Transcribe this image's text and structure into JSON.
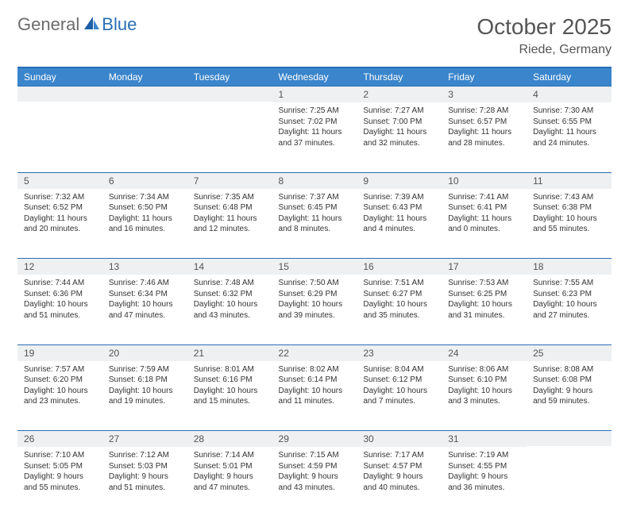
{
  "logo": {
    "text1": "General",
    "text2": "Blue"
  },
  "title": "October 2025",
  "location": "Riede, Germany",
  "colors": {
    "header_bg": "#3a85cc",
    "border": "#2a6fb5",
    "daynum_bg": "#eef0f1",
    "text_muted": "#555",
    "logo_gray": "#6b6b6b",
    "logo_blue": "#2a6fb5"
  },
  "weekdays": [
    "Sunday",
    "Monday",
    "Tuesday",
    "Wednesday",
    "Thursday",
    "Friday",
    "Saturday"
  ],
  "weeks": [
    [
      {
        "n": "",
        "sr": "",
        "ss": "",
        "dl": ""
      },
      {
        "n": "",
        "sr": "",
        "ss": "",
        "dl": ""
      },
      {
        "n": "",
        "sr": "",
        "ss": "",
        "dl": ""
      },
      {
        "n": "1",
        "sr": "Sunrise: 7:25 AM",
        "ss": "Sunset: 7:02 PM",
        "dl": "Daylight: 11 hours and 37 minutes."
      },
      {
        "n": "2",
        "sr": "Sunrise: 7:27 AM",
        "ss": "Sunset: 7:00 PM",
        "dl": "Daylight: 11 hours and 32 minutes."
      },
      {
        "n": "3",
        "sr": "Sunrise: 7:28 AM",
        "ss": "Sunset: 6:57 PM",
        "dl": "Daylight: 11 hours and 28 minutes."
      },
      {
        "n": "4",
        "sr": "Sunrise: 7:30 AM",
        "ss": "Sunset: 6:55 PM",
        "dl": "Daylight: 11 hours and 24 minutes."
      }
    ],
    [
      {
        "n": "5",
        "sr": "Sunrise: 7:32 AM",
        "ss": "Sunset: 6:52 PM",
        "dl": "Daylight: 11 hours and 20 minutes."
      },
      {
        "n": "6",
        "sr": "Sunrise: 7:34 AM",
        "ss": "Sunset: 6:50 PM",
        "dl": "Daylight: 11 hours and 16 minutes."
      },
      {
        "n": "7",
        "sr": "Sunrise: 7:35 AM",
        "ss": "Sunset: 6:48 PM",
        "dl": "Daylight: 11 hours and 12 minutes."
      },
      {
        "n": "8",
        "sr": "Sunrise: 7:37 AM",
        "ss": "Sunset: 6:45 PM",
        "dl": "Daylight: 11 hours and 8 minutes."
      },
      {
        "n": "9",
        "sr": "Sunrise: 7:39 AM",
        "ss": "Sunset: 6:43 PM",
        "dl": "Daylight: 11 hours and 4 minutes."
      },
      {
        "n": "10",
        "sr": "Sunrise: 7:41 AM",
        "ss": "Sunset: 6:41 PM",
        "dl": "Daylight: 11 hours and 0 minutes."
      },
      {
        "n": "11",
        "sr": "Sunrise: 7:43 AM",
        "ss": "Sunset: 6:38 PM",
        "dl": "Daylight: 10 hours and 55 minutes."
      }
    ],
    [
      {
        "n": "12",
        "sr": "Sunrise: 7:44 AM",
        "ss": "Sunset: 6:36 PM",
        "dl": "Daylight: 10 hours and 51 minutes."
      },
      {
        "n": "13",
        "sr": "Sunrise: 7:46 AM",
        "ss": "Sunset: 6:34 PM",
        "dl": "Daylight: 10 hours and 47 minutes."
      },
      {
        "n": "14",
        "sr": "Sunrise: 7:48 AM",
        "ss": "Sunset: 6:32 PM",
        "dl": "Daylight: 10 hours and 43 minutes."
      },
      {
        "n": "15",
        "sr": "Sunrise: 7:50 AM",
        "ss": "Sunset: 6:29 PM",
        "dl": "Daylight: 10 hours and 39 minutes."
      },
      {
        "n": "16",
        "sr": "Sunrise: 7:51 AM",
        "ss": "Sunset: 6:27 PM",
        "dl": "Daylight: 10 hours and 35 minutes."
      },
      {
        "n": "17",
        "sr": "Sunrise: 7:53 AM",
        "ss": "Sunset: 6:25 PM",
        "dl": "Daylight: 10 hours and 31 minutes."
      },
      {
        "n": "18",
        "sr": "Sunrise: 7:55 AM",
        "ss": "Sunset: 6:23 PM",
        "dl": "Daylight: 10 hours and 27 minutes."
      }
    ],
    [
      {
        "n": "19",
        "sr": "Sunrise: 7:57 AM",
        "ss": "Sunset: 6:20 PM",
        "dl": "Daylight: 10 hours and 23 minutes."
      },
      {
        "n": "20",
        "sr": "Sunrise: 7:59 AM",
        "ss": "Sunset: 6:18 PM",
        "dl": "Daylight: 10 hours and 19 minutes."
      },
      {
        "n": "21",
        "sr": "Sunrise: 8:01 AM",
        "ss": "Sunset: 6:16 PM",
        "dl": "Daylight: 10 hours and 15 minutes."
      },
      {
        "n": "22",
        "sr": "Sunrise: 8:02 AM",
        "ss": "Sunset: 6:14 PM",
        "dl": "Daylight: 10 hours and 11 minutes."
      },
      {
        "n": "23",
        "sr": "Sunrise: 8:04 AM",
        "ss": "Sunset: 6:12 PM",
        "dl": "Daylight: 10 hours and 7 minutes."
      },
      {
        "n": "24",
        "sr": "Sunrise: 8:06 AM",
        "ss": "Sunset: 6:10 PM",
        "dl": "Daylight: 10 hours and 3 minutes."
      },
      {
        "n": "25",
        "sr": "Sunrise: 8:08 AM",
        "ss": "Sunset: 6:08 PM",
        "dl": "Daylight: 9 hours and 59 minutes."
      }
    ],
    [
      {
        "n": "26",
        "sr": "Sunrise: 7:10 AM",
        "ss": "Sunset: 5:05 PM",
        "dl": "Daylight: 9 hours and 55 minutes."
      },
      {
        "n": "27",
        "sr": "Sunrise: 7:12 AM",
        "ss": "Sunset: 5:03 PM",
        "dl": "Daylight: 9 hours and 51 minutes."
      },
      {
        "n": "28",
        "sr": "Sunrise: 7:14 AM",
        "ss": "Sunset: 5:01 PM",
        "dl": "Daylight: 9 hours and 47 minutes."
      },
      {
        "n": "29",
        "sr": "Sunrise: 7:15 AM",
        "ss": "Sunset: 4:59 PM",
        "dl": "Daylight: 9 hours and 43 minutes."
      },
      {
        "n": "30",
        "sr": "Sunrise: 7:17 AM",
        "ss": "Sunset: 4:57 PM",
        "dl": "Daylight: 9 hours and 40 minutes."
      },
      {
        "n": "31",
        "sr": "Sunrise: 7:19 AM",
        "ss": "Sunset: 4:55 PM",
        "dl": "Daylight: 9 hours and 36 minutes."
      },
      {
        "n": "",
        "sr": "",
        "ss": "",
        "dl": ""
      }
    ]
  ]
}
